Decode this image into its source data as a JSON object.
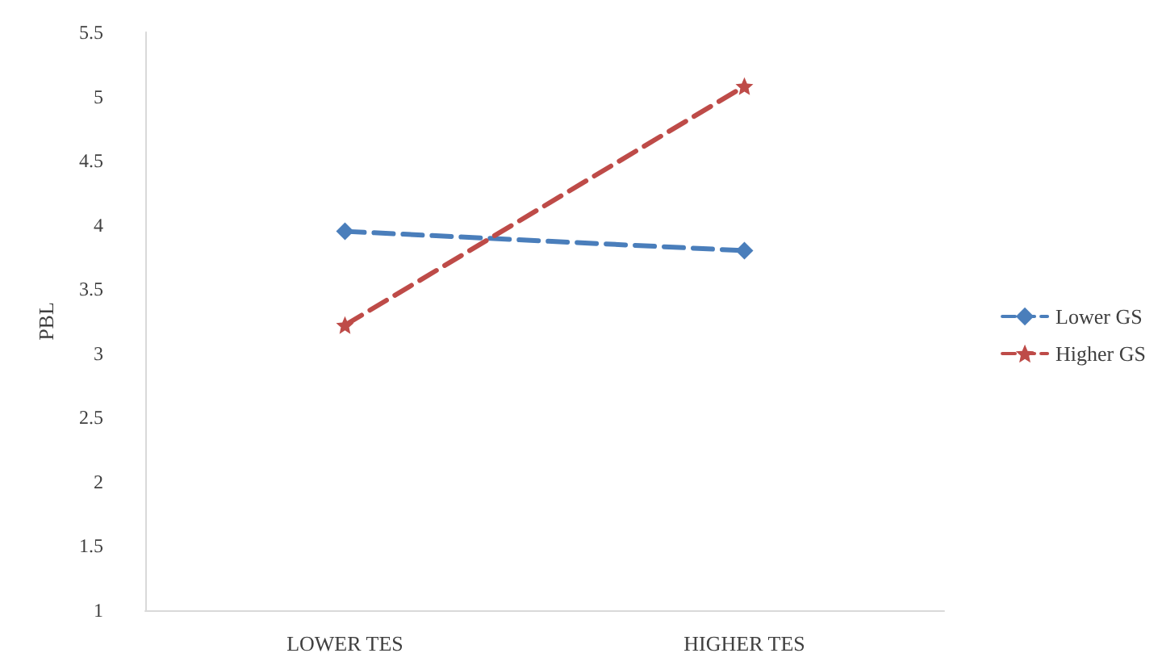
{
  "chart_data": {
    "type": "line",
    "ylabel": "PBL",
    "categories": [
      "LOWER TES",
      "HIGHER TES"
    ],
    "series": [
      {
        "name": "Lower GS",
        "color": "#4a7ebb",
        "values": [
          3.95,
          3.8
        ],
        "marker": "diamond"
      },
      {
        "name": "Higher GS",
        "color": "#be4b48",
        "values": [
          3.22,
          5.08
        ],
        "marker": "star"
      }
    ],
    "ylim": [
      1,
      5.5
    ],
    "yticks": [
      1,
      1.5,
      2,
      2.5,
      3,
      3.5,
      4,
      4.5,
      5,
      5.5
    ],
    "grid": false,
    "legend": "right",
    "line_style": "dashed"
  }
}
